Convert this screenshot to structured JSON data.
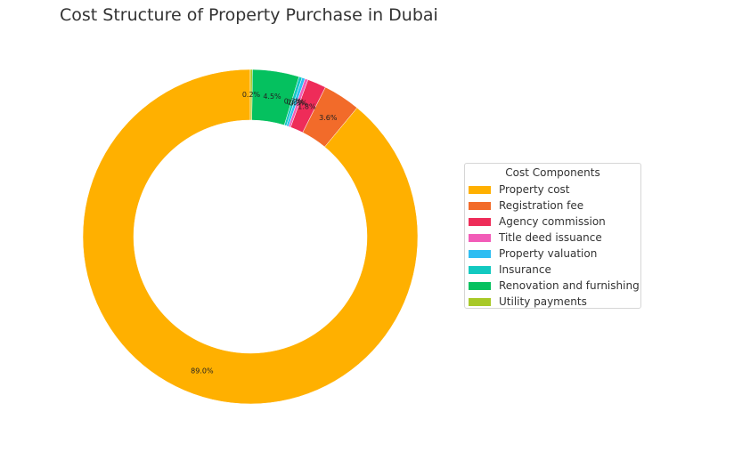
{
  "chart_data": {
    "type": "pie",
    "style": "donut",
    "title": "Cost Structure of Property Purchase in Dubai",
    "legend_title": "Cost Components",
    "legend_position": "right",
    "categories": [
      "Property cost",
      "Registration fee",
      "Agency commission",
      "Title deed issuance",
      "Property valuation",
      "Insurance",
      "Renovation and furnishing",
      "Utility payments"
    ],
    "values": [
      89.0,
      3.6,
      1.8,
      0.3,
      0.3,
      0.3,
      4.5,
      0.2
    ],
    "labels": [
      "89.0%",
      "3.6%",
      "1.8%",
      "0.3%",
      "0.3%",
      "0.3%",
      "4.5%",
      "0.2%"
    ],
    "colors": [
      "#ffb000",
      "#f26b2a",
      "#ee2c59",
      "#f25cb8",
      "#2ebdf2",
      "#12c9c0",
      "#05c15f",
      "#a8c928"
    ]
  },
  "legend": {
    "title": "Cost Components",
    "items": [
      {
        "label": "Property cost",
        "color": "#ffb000"
      },
      {
        "label": "Registration fee",
        "color": "#f26b2a"
      },
      {
        "label": "Agency commission",
        "color": "#ee2c59"
      },
      {
        "label": "Title deed issuance",
        "color": "#f25cb8"
      },
      {
        "label": "Property valuation",
        "color": "#2ebdf2"
      },
      {
        "label": "Insurance",
        "color": "#12c9c0"
      },
      {
        "label": "Renovation and furnishing",
        "color": "#05c15f"
      },
      {
        "label": "Utility payments",
        "color": "#a8c928"
      }
    ]
  }
}
